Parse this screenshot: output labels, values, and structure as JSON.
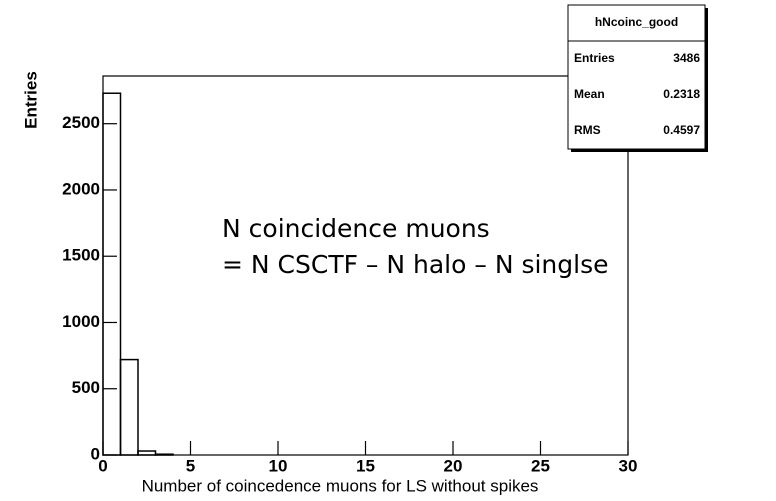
{
  "chart_data": {
    "type": "histogram",
    "xlabel": "Number of coincedence muons for LS without spikes",
    "ylabel": "Entries",
    "bins": [
      0,
      1,
      2,
      3,
      4,
      5,
      6,
      7,
      8,
      9,
      10,
      11,
      12,
      13,
      14,
      15,
      16,
      17,
      18,
      19,
      20,
      21,
      22,
      23,
      24,
      25,
      26,
      27,
      28,
      29,
      30
    ],
    "values": [
      2730,
      720,
      30,
      6,
      0,
      0,
      0,
      0,
      0,
      0,
      0,
      0,
      0,
      0,
      0,
      0,
      0,
      0,
      0,
      0,
      0,
      0,
      0,
      0,
      0,
      0,
      0,
      0,
      0,
      0
    ],
    "color": "#000000",
    "xlim": [
      0,
      30
    ],
    "xticks": [
      0,
      5,
      10,
      15,
      20,
      25,
      30
    ],
    "ylim": [
      0,
      2860
    ],
    "yticks": [
      0,
      500,
      1000,
      1500,
      2000,
      2500
    ],
    "stats": {
      "title": "hNcoinc_good",
      "rows": [
        [
          "Entries",
          "3486"
        ],
        [
          "Mean",
          "0.2318"
        ],
        [
          "RMS",
          "0.4597"
        ]
      ]
    },
    "annotations": [
      "N coincidence muons",
      "= N CSCTF – N halo – N singlse"
    ]
  }
}
